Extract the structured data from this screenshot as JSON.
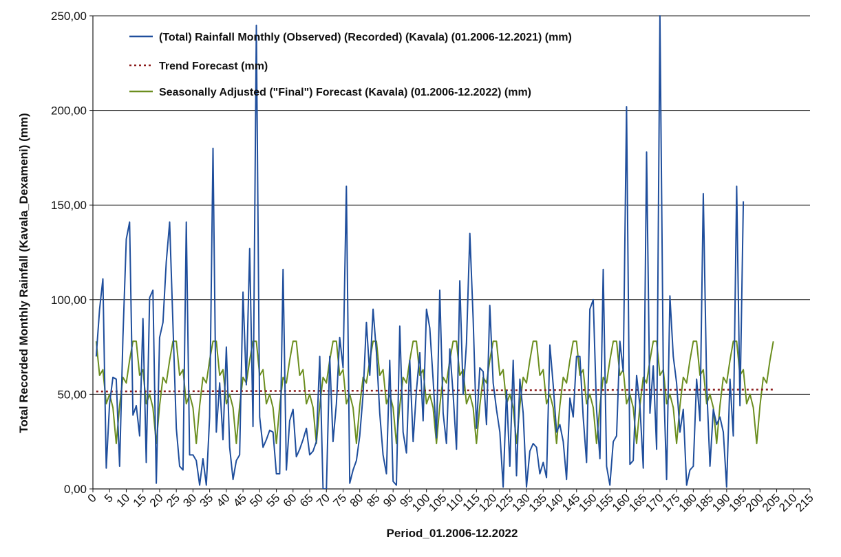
{
  "chart_data": {
    "type": "line",
    "xlabel": "Period_01.2006-12.2022",
    "ylabel": "Total Recorded Monthly Rainfall (Kavala_Dexameni) (mm)",
    "xlim": [
      0,
      215
    ],
    "ylim": [
      0,
      250
    ],
    "x_ticks": [
      "0",
      "5",
      "10",
      "15",
      "20",
      "25",
      "30",
      "35",
      "40",
      "45",
      "50",
      "55",
      "60",
      "65",
      "70",
      "75",
      "80",
      "85",
      "90",
      "95",
      "100",
      "105",
      "110",
      "115",
      "120",
      "125",
      "130",
      "135",
      "140",
      "145",
      "150",
      "155",
      "160",
      "165",
      "170",
      "175",
      "180",
      "185",
      "190",
      "195",
      "200",
      "205",
      "210",
      "215"
    ],
    "y_ticks": [
      "0,00",
      "50,00",
      "100,00",
      "150,00",
      "200,00",
      "250,00"
    ],
    "y_tick_values": [
      0,
      50,
      100,
      150,
      200,
      250
    ],
    "grid": "horizontal",
    "legend_position": "top",
    "series": [
      {
        "name": "(Total) Rainfall Monthly (Observed) (Recorded) (Kavala) (01.2006-12.2021) (mm)",
        "color": "#1f4e9c",
        "dash": "solid",
        "x_start": 1,
        "values": [
          70,
          95,
          111,
          11,
          45,
          59,
          58,
          12,
          80,
          132,
          141,
          39,
          44,
          28,
          90,
          14,
          101,
          105,
          3,
          80,
          88,
          120,
          141,
          87,
          32,
          12,
          10,
          141,
          18,
          18,
          15,
          2,
          16,
          2,
          38,
          180,
          30,
          56,
          26,
          75,
          22,
          5,
          15,
          18,
          104,
          55,
          127,
          33,
          245,
          38,
          22,
          26,
          31,
          30,
          8,
          8,
          116,
          10,
          36,
          42,
          17,
          21,
          26,
          32,
          18,
          20,
          25,
          70,
          0,
          0,
          70,
          25,
          45,
          80,
          64,
          160,
          3,
          10,
          15,
          28,
          50,
          88,
          60,
          95,
          72,
          40,
          18,
          8,
          68,
          4,
          2,
          86,
          30,
          19,
          68,
          25,
          52,
          72,
          36,
          95,
          85,
          58,
          27,
          105,
          40,
          24,
          74,
          50,
          21,
          110,
          50,
          77,
          135,
          90,
          32,
          64,
          62,
          34,
          97,
          56,
          42,
          30,
          1,
          52,
          12,
          68,
          7,
          58,
          40,
          1,
          20,
          24,
          22,
          8,
          14,
          6,
          76,
          55,
          30,
          34,
          25,
          5,
          48,
          38,
          70,
          70,
          38,
          14,
          95,
          100,
          42,
          16,
          116,
          12,
          2,
          25,
          28,
          78,
          62,
          202,
          13,
          15,
          60,
          44,
          11,
          178,
          40,
          65,
          21,
          250,
          62,
          5,
          102,
          70,
          56,
          30,
          42,
          2,
          10,
          12,
          58,
          36,
          156,
          55,
          12,
          42,
          34,
          38,
          30,
          1,
          58,
          28,
          160,
          44,
          152
        ]
      },
      {
        "name": "Trend Forecast (mm)",
        "color": "#8b1a1a",
        "dash": "dotted",
        "x_start": 1,
        "x_end": 204,
        "values": [
          51.5,
          52.5
        ]
      },
      {
        "name": "Seasonally Adjusted (\"Final\") Forecast (Kavala) (01.2006-12.2022) (mm)",
        "color": "#6b8e1f",
        "dash": "solid",
        "x_start": 1,
        "profile": [
          78,
          60,
          63,
          45,
          50,
          43,
          24,
          44,
          59,
          56,
          68,
          78
        ],
        "values": []
      }
    ]
  }
}
